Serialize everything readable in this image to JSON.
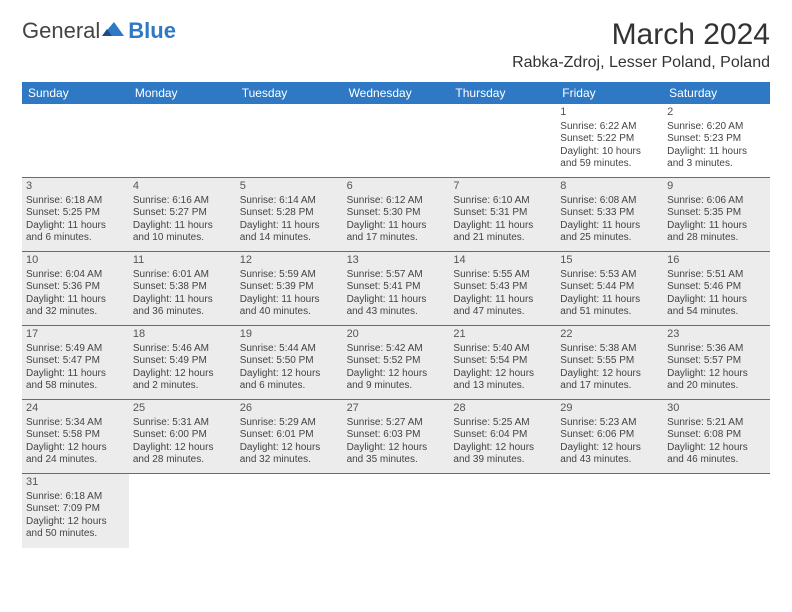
{
  "logo": {
    "word1": "General",
    "word2": "Blue"
  },
  "title": "March 2024",
  "location": "Rabka-Zdroj, Lesser Poland, Poland",
  "colors": {
    "header_bg": "#2f78c4",
    "shade_bg": "#ececec",
    "text": "#444444",
    "border": "#2f78c4"
  },
  "weekdays": [
    "Sunday",
    "Monday",
    "Tuesday",
    "Wednesday",
    "Thursday",
    "Friday",
    "Saturday"
  ],
  "first_day_index": 5,
  "days": [
    {
      "n": 1,
      "sunrise": "6:22 AM",
      "sunset": "5:22 PM",
      "daylight": "10 hours and 59 minutes."
    },
    {
      "n": 2,
      "sunrise": "6:20 AM",
      "sunset": "5:23 PM",
      "daylight": "11 hours and 3 minutes."
    },
    {
      "n": 3,
      "sunrise": "6:18 AM",
      "sunset": "5:25 PM",
      "daylight": "11 hours and 6 minutes."
    },
    {
      "n": 4,
      "sunrise": "6:16 AM",
      "sunset": "5:27 PM",
      "daylight": "11 hours and 10 minutes."
    },
    {
      "n": 5,
      "sunrise": "6:14 AM",
      "sunset": "5:28 PM",
      "daylight": "11 hours and 14 minutes."
    },
    {
      "n": 6,
      "sunrise": "6:12 AM",
      "sunset": "5:30 PM",
      "daylight": "11 hours and 17 minutes."
    },
    {
      "n": 7,
      "sunrise": "6:10 AM",
      "sunset": "5:31 PM",
      "daylight": "11 hours and 21 minutes."
    },
    {
      "n": 8,
      "sunrise": "6:08 AM",
      "sunset": "5:33 PM",
      "daylight": "11 hours and 25 minutes."
    },
    {
      "n": 9,
      "sunrise": "6:06 AM",
      "sunset": "5:35 PM",
      "daylight": "11 hours and 28 minutes."
    },
    {
      "n": 10,
      "sunrise": "6:04 AM",
      "sunset": "5:36 PM",
      "daylight": "11 hours and 32 minutes."
    },
    {
      "n": 11,
      "sunrise": "6:01 AM",
      "sunset": "5:38 PM",
      "daylight": "11 hours and 36 minutes."
    },
    {
      "n": 12,
      "sunrise": "5:59 AM",
      "sunset": "5:39 PM",
      "daylight": "11 hours and 40 minutes."
    },
    {
      "n": 13,
      "sunrise": "5:57 AM",
      "sunset": "5:41 PM",
      "daylight": "11 hours and 43 minutes."
    },
    {
      "n": 14,
      "sunrise": "5:55 AM",
      "sunset": "5:43 PM",
      "daylight": "11 hours and 47 minutes."
    },
    {
      "n": 15,
      "sunrise": "5:53 AM",
      "sunset": "5:44 PM",
      "daylight": "11 hours and 51 minutes."
    },
    {
      "n": 16,
      "sunrise": "5:51 AM",
      "sunset": "5:46 PM",
      "daylight": "11 hours and 54 minutes."
    },
    {
      "n": 17,
      "sunrise": "5:49 AM",
      "sunset": "5:47 PM",
      "daylight": "11 hours and 58 minutes."
    },
    {
      "n": 18,
      "sunrise": "5:46 AM",
      "sunset": "5:49 PM",
      "daylight": "12 hours and 2 minutes."
    },
    {
      "n": 19,
      "sunrise": "5:44 AM",
      "sunset": "5:50 PM",
      "daylight": "12 hours and 6 minutes."
    },
    {
      "n": 20,
      "sunrise": "5:42 AM",
      "sunset": "5:52 PM",
      "daylight": "12 hours and 9 minutes."
    },
    {
      "n": 21,
      "sunrise": "5:40 AM",
      "sunset": "5:54 PM",
      "daylight": "12 hours and 13 minutes."
    },
    {
      "n": 22,
      "sunrise": "5:38 AM",
      "sunset": "5:55 PM",
      "daylight": "12 hours and 17 minutes."
    },
    {
      "n": 23,
      "sunrise": "5:36 AM",
      "sunset": "5:57 PM",
      "daylight": "12 hours and 20 minutes."
    },
    {
      "n": 24,
      "sunrise": "5:34 AM",
      "sunset": "5:58 PM",
      "daylight": "12 hours and 24 minutes."
    },
    {
      "n": 25,
      "sunrise": "5:31 AM",
      "sunset": "6:00 PM",
      "daylight": "12 hours and 28 minutes."
    },
    {
      "n": 26,
      "sunrise": "5:29 AM",
      "sunset": "6:01 PM",
      "daylight": "12 hours and 32 minutes."
    },
    {
      "n": 27,
      "sunrise": "5:27 AM",
      "sunset": "6:03 PM",
      "daylight": "12 hours and 35 minutes."
    },
    {
      "n": 28,
      "sunrise": "5:25 AM",
      "sunset": "6:04 PM",
      "daylight": "12 hours and 39 minutes."
    },
    {
      "n": 29,
      "sunrise": "5:23 AM",
      "sunset": "6:06 PM",
      "daylight": "12 hours and 43 minutes."
    },
    {
      "n": 30,
      "sunrise": "5:21 AM",
      "sunset": "6:08 PM",
      "daylight": "12 hours and 46 minutes."
    },
    {
      "n": 31,
      "sunrise": "6:18 AM",
      "sunset": "7:09 PM",
      "daylight": "12 hours and 50 minutes."
    }
  ],
  "labels": {
    "sunrise": "Sunrise:",
    "sunset": "Sunset:",
    "daylight": "Daylight:"
  }
}
